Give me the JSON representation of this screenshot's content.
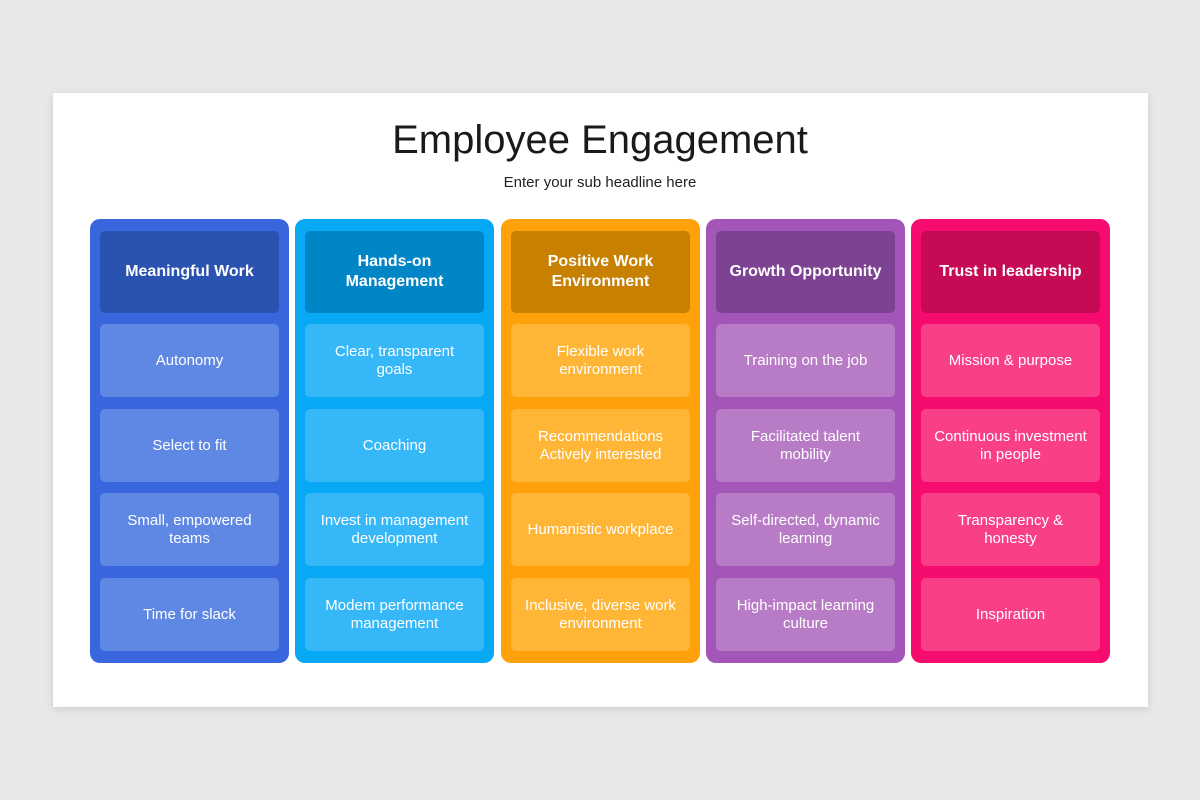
{
  "title": "Employee Engagement",
  "subtitle": "Enter your sub headline here",
  "columns": [
    {
      "heading": "Meaningful Work",
      "colors": {
        "column": "#3a66dd",
        "header": "#2a52b0",
        "item": "#5f87e4"
      },
      "items": [
        "Autonomy",
        "Select to fit",
        "Small, empowered teams",
        "Time for slack"
      ]
    },
    {
      "heading": "Hands-on Management",
      "colors": {
        "column": "#07a9f5",
        "header": "#0086c7",
        "item": "#36b8f8"
      },
      "items": [
        "Clear, transparent goals",
        "Coaching",
        "Invest in management development",
        "Modem performance management"
      ]
    },
    {
      "heading": "Positive Work Environment",
      "colors": {
        "column": "#ffa10a",
        "header": "#c88000",
        "item": "#ffb636"
      },
      "items": [
        "Flexible work environment",
        "Recommendations Actively interested",
        "Humanistic workplace",
        "Inclusive, diverse work environment"
      ]
    },
    {
      "heading": "Growth Opportunity",
      "colors": {
        "column": "#a455b8",
        "header": "#7d4292",
        "item": "#b87cc6"
      },
      "items": [
        "Training on the job",
        "Facilitated talent mobility",
        "Self-directed, dynamic learning",
        "High-impact learning culture"
      ]
    },
    {
      "heading": "Trust in leadership",
      "colors": {
        "column": "#f50c6e",
        "header": "#c70a55",
        "item": "#f93f88"
      },
      "items": [
        "Mission & purpose",
        "Continuous investment in people",
        "Transparency & honesty",
        "Inspiration"
      ]
    }
  ]
}
